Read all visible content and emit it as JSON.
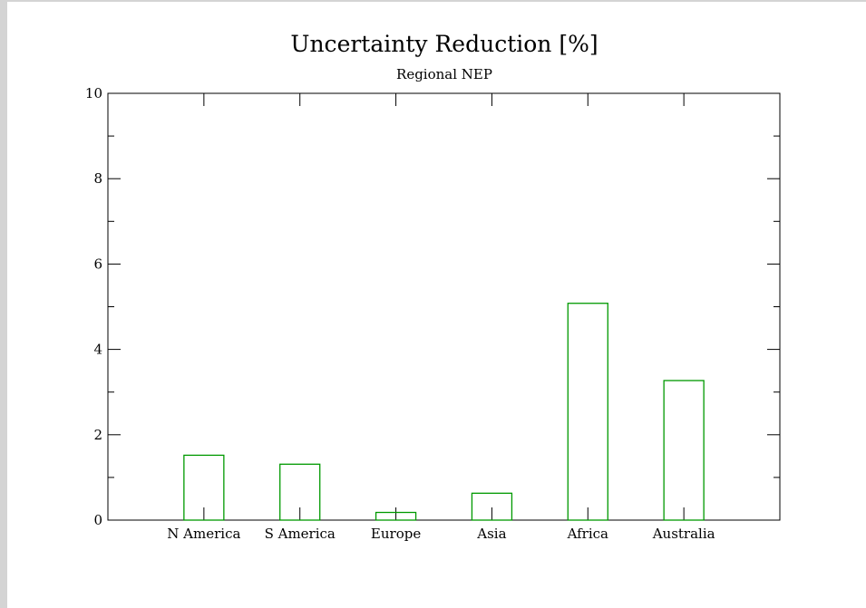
{
  "chart_data": {
    "type": "bar",
    "title": "Uncertainty Reduction [%]",
    "subtitle": "Regional NEP",
    "xlabel": "",
    "ylabel": "",
    "categories": [
      "N America",
      "S America",
      "Europe",
      "Asia",
      "Africa",
      "Australia"
    ],
    "values": [
      1.52,
      1.31,
      0.18,
      0.63,
      5.08,
      3.27
    ],
    "ylim": [
      0,
      10
    ],
    "yticks": [
      "0",
      "2",
      "4",
      "6",
      "8",
      "10"
    ],
    "grid": false,
    "bar_style": "outline",
    "bar_color": "#009900"
  }
}
